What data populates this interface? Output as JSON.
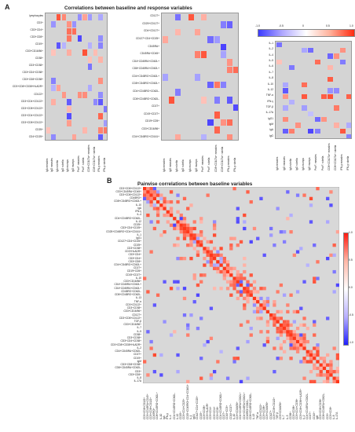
{
  "panel_a": {
    "label": "A",
    "title": "Correlations between baseline and response variables",
    "response_labels": [
      "IgA measles",
      "IgG measles",
      "IgA rubella",
      "IgG rubella",
      "IgA mumps",
      "IgG mumps",
      "PncF. measles",
      "PncF. rubella",
      "CD8+CD107a+ measles",
      "CD8+CD107a+ rubella",
      "IFN-γ measles",
      "IFN-γ rubella"
    ],
    "sub1": {
      "rows": [
        "lymphocytes",
        "CD3+",
        "CD3+CD4+",
        "CD3+CD8+",
        "CD19+",
        "CD3+CD16/56+",
        "CD38+",
        "CD3+CD38+",
        "CD3+CD4+CD38+",
        "CD3+CD8+CD38+",
        "CD3+CD8+CD38+HLADR+",
        "CD122+",
        "CD3+CD4+CD122+",
        "CD3+CD8+CD122+",
        "CD3+CD4+CD122+",
        "CD3+CD8+CD122+",
        "CD25+",
        "CD4+CD25+"
      ]
    },
    "sub2": {
      "rows": [
        "CD127+",
        "CD25+CD127+",
        "CD4+CD127+",
        "CD127+CD4+CD25+",
        "CD45RA+",
        "CD45RA+CD45+",
        "CD4+CD45RA+CD62L+",
        "CD8+CD45RA+CD62L+",
        "CD4+CD45RO+CD62L+",
        "CD8+CD45RO+CD62L+",
        "CD4+CD45RO+CD62L-",
        "CD8+CD45RO+CD62L-",
        "CD27+",
        "CD19+CD27+",
        "CD19+CD5+",
        "CD3+CD16/56+",
        "CD4+CD45RO+CD161+"
      ]
    },
    "sub3": {
      "rows": [
        "IL-1",
        "IL-2",
        "IL-4",
        "IL-5",
        "IL-6",
        "IL-7",
        "IL-8",
        "IL-10",
        "IL-12",
        "TNF-α",
        "IFN-γ",
        "TGF-β",
        "IL-17A",
        "IgG1",
        "IgM",
        "IgA",
        "IgG"
      ],
      "colorbar_ticks": [
        "-1.0",
        "-0.5",
        "0",
        "0.5",
        "1.0"
      ]
    }
  },
  "panel_b": {
    "label": "B",
    "title": "Pairwise correlations between baseline variables",
    "variables": [
      "CD3+CD8+CD122+",
      "CD3+CD45RA+CD45+",
      "CD3+CD8+CD122+",
      "CD45RO+",
      "CD8+CD45RO+CD62L+",
      "IL-10",
      "IgA",
      "IFN-γ",
      "IL-4",
      "CD4+CD45RO+CD62L-",
      "IL-12",
      "CD25+",
      "CD3+CD4+CD25+",
      "CD25+CD45RO+CD4+CD161+",
      "IL-1",
      "IgG1",
      "CD127+CD4+CD25+",
      "CD25+",
      "CD3+CD38+",
      "CD3+HLADR+",
      "CD3+CD4+",
      "CD3+CD4+",
      "CD3+CD8+",
      "CD4+CD45RO+CD62L+",
      "CD27+",
      "CD19+CD5+",
      "CD19+CD27+",
      "IL-10",
      "CD3+CD16/56+",
      "CD4+CD45RA+CD62L+",
      "CD4+CD45RA+CD62L+",
      "CD45RO+CD62L-",
      "CD8+CD45RO+CD62L-",
      "IL-13",
      "TNF-α",
      "CD3+CD122+",
      "CD3+CD38+",
      "CD3+CD16/56+",
      "CD127+",
      "CD3+CD8+CD122+",
      "TGF-β",
      "CD3+CD16/56+",
      "IL-7",
      "IL-5",
      "CD38+",
      "CD3+CD38+",
      "CD3+CD4+CD38+",
      "CD3+CD8+CD38+HLADR+",
      "IL-2",
      "CD4+CD45RA+CD62L-",
      "CD27+",
      "CD19+",
      "IgM",
      "CD3+CD8+CD38+",
      "CD8+CD45RA+CD62L-",
      "CD3+",
      "CD3+CD8+",
      "IL-8",
      "IL-17A"
    ],
    "colorbar_ticks": [
      "1.0",
      "0.5",
      "0.0",
      "-0.5",
      "-1.0"
    ]
  }
}
